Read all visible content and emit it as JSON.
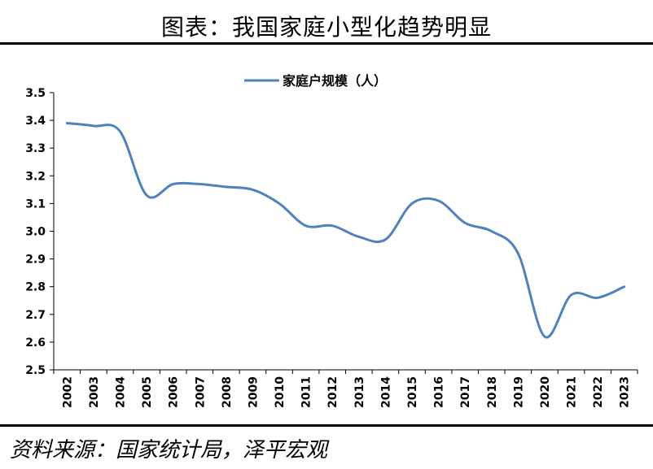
{
  "header": {
    "title": "图表：我国家庭小型化趋势明显"
  },
  "footer": {
    "source": "资料来源：国家统计局，泽平宏观"
  },
  "chart_data": {
    "type": "line",
    "title": "",
    "xlabel": "",
    "ylabel": "",
    "ylim": [
      2.5,
      3.5
    ],
    "yticks": [
      "2.5",
      "2.6",
      "2.7",
      "2.8",
      "2.9",
      "3.0",
      "3.1",
      "3.2",
      "3.3",
      "3.4",
      "3.5"
    ],
    "legend_position": "top-center",
    "grid": false,
    "categories": [
      "2002",
      "2003",
      "2004",
      "2005",
      "2006",
      "2007",
      "2008",
      "2009",
      "2010",
      "2011",
      "2012",
      "2013",
      "2014",
      "2015",
      "2016",
      "2017",
      "2018",
      "2019",
      "2020",
      "2021",
      "2022",
      "2023"
    ],
    "series": [
      {
        "name": "家庭户规模（人）",
        "color": "#4f81bd",
        "values": [
          3.39,
          3.38,
          3.36,
          3.13,
          3.17,
          3.17,
          3.16,
          3.15,
          3.1,
          3.02,
          3.02,
          2.98,
          2.97,
          3.1,
          3.11,
          3.03,
          3.0,
          2.92,
          2.62,
          2.77,
          2.76,
          2.8
        ]
      }
    ]
  }
}
